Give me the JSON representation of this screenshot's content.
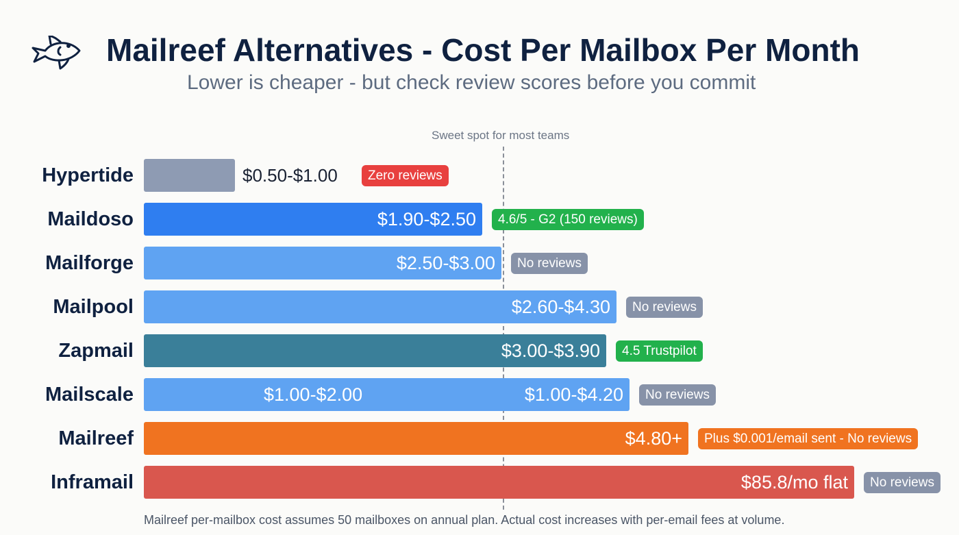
{
  "title": "Mailreef Alternatives - Cost Per Mailbox Per Month",
  "subtitle": "Lower is cheaper - but check review scores before you commit",
  "logo_icon": "fish-icon",
  "annotation": "Sweet spot for most teams",
  "footnote": "Mailreef per-mailbox cost assumes 50 mailboxes on annual plan. Actual cost increases with per-email fees at volume.",
  "chart_data": {
    "type": "bar",
    "orientation": "horizontal",
    "title": "Mailreef Alternatives - Cost Per Mailbox Per Month",
    "categories": [
      "Hypertide",
      "Maildoso",
      "Mailforge",
      "Mailpool",
      "Zapmail",
      "Mailscale",
      "Mailreef",
      "Inframail"
    ],
    "value_labels": [
      "$0.50-$1.00",
      "$1.90-$2.50",
      "$2.50-$3.00",
      "$2.60-$4.30",
      "$3.00-$3.90",
      "$1.00-$4.20",
      "$4.80+",
      "$85.8/mo flat"
    ],
    "extra_labels": {
      "Mailscale": "$1.00-$2.00"
    },
    "badges": [
      "Zero reviews",
      "4.6/5 - G2 (150 reviews)",
      "No reviews",
      "No reviews",
      "4.5 Trustpilot",
      "No reviews",
      "Plus $0.001/email sent - No reviews",
      "No reviews"
    ],
    "colors": [
      "#8e9bb3",
      "#2f7ef0",
      "#5fa3f2",
      "#5fa3f2",
      "#3a7f99",
      "#5fa3f2",
      "#f07320",
      "#d9574e"
    ],
    "badge_colors": [
      "#e8403f",
      "#22b14c",
      "#8792a8",
      "#8792a8",
      "#22b14c",
      "#8792a8",
      "#f07320",
      "#8792a8"
    ]
  }
}
